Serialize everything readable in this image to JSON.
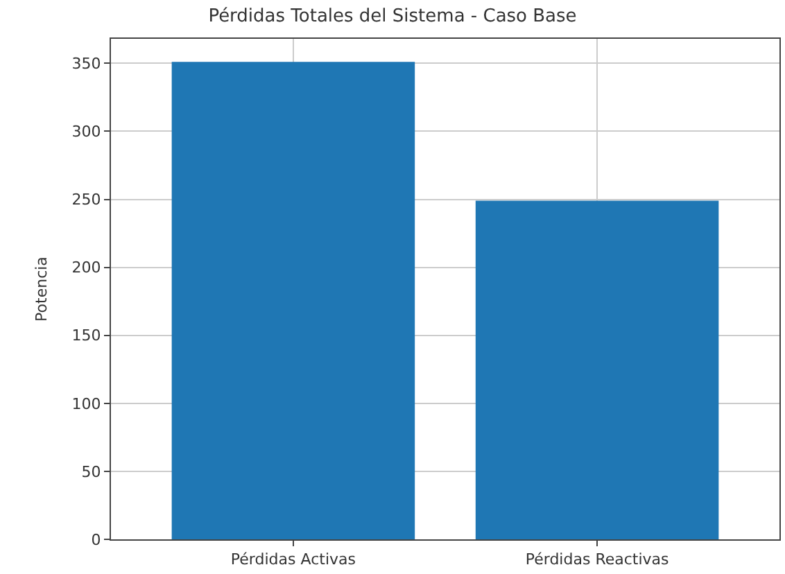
{
  "chart_data": {
    "type": "bar",
    "title": "Pérdidas Totales del Sistema - Caso Base",
    "ylabel": "Potencia",
    "categories": [
      "Pérdidas Activas",
      "Pérdidas Reactivas"
    ],
    "values": [
      351,
      249
    ],
    "color": "#1f77b4",
    "ylim": [
      0,
      368
    ],
    "yticks": [
      0,
      50,
      100,
      150,
      200,
      250,
      300,
      350
    ],
    "grid": true
  }
}
